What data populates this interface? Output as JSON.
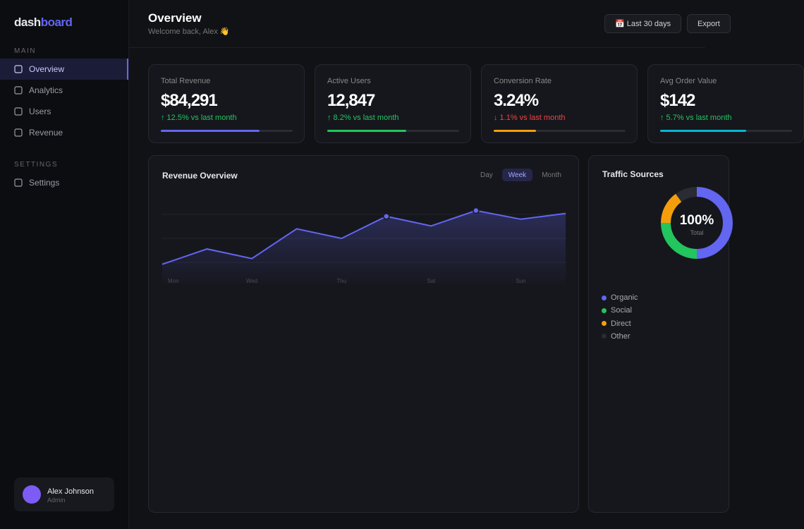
{
  "sidebar": {
    "logo": {
      "part1": "dash",
      "part2": "board"
    },
    "sections": [
      {
        "label": "MAIN",
        "items": [
          {
            "label": "Overview",
            "active": true
          },
          {
            "label": "Analytics"
          },
          {
            "label": "Users"
          },
          {
            "label": "Revenue"
          }
        ]
      },
      {
        "label": "SETTINGS",
        "items": [
          {
            "label": "Settings"
          }
        ]
      }
    ],
    "user": {
      "name": "Alex Johnson",
      "role": "Admin"
    }
  },
  "header": {
    "title": "Overview",
    "subtitle": "Welcome back, Alex 👋",
    "buttons": [
      "📅 Last 30 days",
      "Export"
    ]
  },
  "stats": [
    {
      "label": "Total Revenue",
      "value": "$84,291",
      "change": "↑ 12.5% vs last month",
      "trend": "up",
      "progress": 75,
      "color": "#6366f1"
    },
    {
      "label": "Active Users",
      "value": "12,847",
      "change": "↑ 8.2% vs last month",
      "trend": "up",
      "progress": 60,
      "color": "#22c55e"
    },
    {
      "label": "Conversion Rate",
      "value": "3.24%",
      "change": "↓ 1.1% vs last month",
      "trend": "down",
      "progress": 32,
      "color": "#f59e0b"
    },
    {
      "label": "Avg Order Value",
      "value": "$142",
      "change": "↑ 5.7% vs last month",
      "trend": "up",
      "progress": 65,
      "color": "#06b6d4"
    }
  ],
  "revenue_tabs": [
    {
      "label": "Day"
    },
    {
      "label": "Week",
      "active": true
    },
    {
      "label": "Month"
    }
  ],
  "chart_data": [
    {
      "type": "line",
      "title": "Revenue Overview",
      "categories": [
        "Mon",
        null,
        "Wed",
        null,
        "Thu",
        null,
        "Sat",
        null,
        "Sun",
        null
      ],
      "values": [
        23,
        39,
        29,
        60,
        50,
        73,
        63,
        79,
        70,
        76
      ],
      "color": "#6366f1",
      "highlight": [
        5,
        7
      ],
      "ylim": [
        0,
        100
      ],
      "yticks": [
        25,
        50,
        75
      ],
      "grid": true
    },
    {
      "type": "donut",
      "title": "Traffic Sources",
      "categories": [
        "Organic",
        "Social",
        "Direct",
        "Other"
      ],
      "values": [
        50,
        25,
        15,
        10
      ],
      "colors": [
        "#6366f1",
        "#22c55e",
        "#f59e0b",
        "#2a2b33"
      ],
      "center_label": "100%",
      "center_sublabel": "Total"
    }
  ]
}
